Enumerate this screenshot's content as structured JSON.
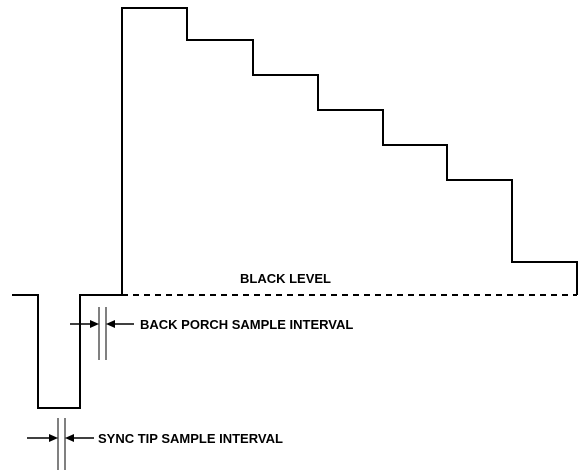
{
  "labels": {
    "black_level": "BLACK LEVEL",
    "back_porch": "BACK PORCH SAMPLE INTERVAL",
    "sync_tip": "SYNC TIP SAMPLE INTERVAL"
  },
  "colors": {
    "stroke": "#000000",
    "background": "#ffffff"
  }
}
